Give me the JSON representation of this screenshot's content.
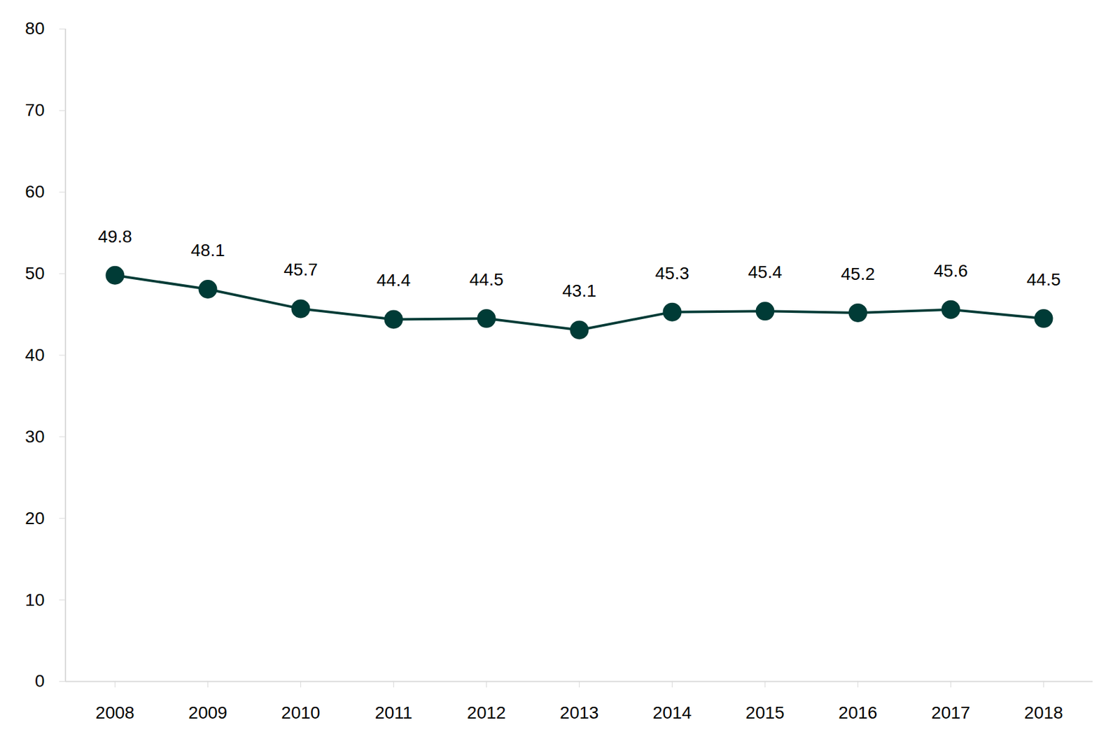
{
  "chart_data": {
    "type": "line",
    "categories": [
      "2008",
      "2009",
      "2010",
      "2011",
      "2012",
      "2013",
      "2014",
      "2015",
      "2016",
      "2017",
      "2018"
    ],
    "values": [
      49.8,
      48.1,
      45.7,
      44.4,
      44.5,
      43.1,
      45.3,
      45.4,
      45.2,
      45.6,
      44.5
    ],
    "color": "#003b36",
    "marker": "circle",
    "ylim": [
      0,
      80
    ],
    "yticks": [
      0,
      10,
      20,
      30,
      40,
      50,
      60,
      70,
      80
    ],
    "grid": false,
    "data_labels": true
  }
}
